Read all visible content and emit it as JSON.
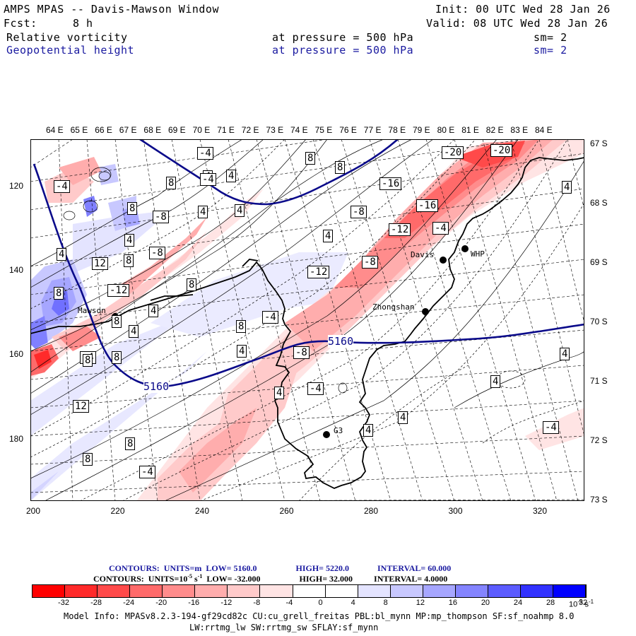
{
  "header": {
    "title": "AMPS MPAS -- Davis-Mawson Window",
    "init": "Init: 00 UTC Wed 28 Jan 26",
    "fcst_label": "Fcst:",
    "fcst_value": "8 h",
    "valid": "Valid: 08 UTC Wed 28 Jan 26",
    "field1": {
      "name": "Relative vorticity",
      "pressure": "at pressure =  500 hPa",
      "sm": "sm= 2"
    },
    "field2": {
      "name": "Geopotential height",
      "pressure": "at pressure =  500 hPa",
      "sm": "sm= 2"
    }
  },
  "axes": {
    "top_lon": [
      "64 E",
      "65 E",
      "66 E",
      "67 E",
      "68 E",
      "69 E",
      "70 E",
      "71 E",
      "72 E",
      "73 E",
      "74 E",
      "75 E",
      "76 E",
      "77 E",
      "78 E",
      "79 E",
      "80 E",
      "81 E",
      "82 E",
      "83 E",
      "84 E"
    ],
    "left_y": [
      "120",
      "140",
      "160",
      "180"
    ],
    "right_lat": [
      "67 S",
      "68 S",
      "69 S",
      "70 S",
      "71 S",
      "72 S",
      "73 S"
    ],
    "bottom_x": [
      "200",
      "220",
      "240",
      "260",
      "280",
      "300",
      "320"
    ]
  },
  "stations": [
    {
      "name": "Davis"
    },
    {
      "name": "WHP"
    },
    {
      "name": "Zhongshan"
    },
    {
      "name": "Mawson"
    },
    {
      "name": "G3"
    }
  ],
  "height_labels": [
    "5160",
    "5160"
  ],
  "vort_labels": [
    "-4",
    "-4",
    "4",
    "4",
    "8",
    "8",
    "4",
    "-4",
    "8",
    "8",
    "4",
    "-8",
    "4",
    "8",
    "-8",
    "12",
    "4",
    "8",
    "-12",
    "8",
    "4",
    "4",
    "8",
    "8",
    "-4",
    "8",
    "4",
    "-8",
    "-16",
    "-16",
    "-20",
    "-20",
    "-12",
    "-4",
    "4",
    "-12",
    "-8",
    "8",
    "12",
    "8",
    "8",
    "-4",
    "-4",
    "-8",
    "-4",
    "4",
    "4",
    "4",
    "-4",
    "4",
    "4",
    "4"
  ],
  "legend": {
    "line1": {
      "contours": "CONTOURS:",
      "units": "UNITS=m",
      "low": "LOW=  5160.0",
      "high": "HIGH=  5220.0",
      "interval": "INTERVAL=   60.000"
    },
    "line2": {
      "contours": "CONTOURS:",
      "units": "UNITS=10",
      "units_exp": "-5",
      "units_suffix": " s",
      "units_suffix_exp": "-1",
      "low": "LOW=  -32.000",
      "high": "HIGH=  32.000",
      "interval": "INTERVAL=   4.0000"
    },
    "colors": [
      "#ff0000",
      "#ff2a2a",
      "#ff4a4a",
      "#ff6a6a",
      "#ff8c8c",
      "#ffadad",
      "#ffcaca",
      "#ffe4e4",
      "#ffffff",
      "#ffffff",
      "#e4e4ff",
      "#c8c8ff",
      "#a6a6ff",
      "#8484ff",
      "#5c5cff",
      "#3232ff",
      "#0000ff"
    ],
    "ticks": [
      "-32",
      "-28",
      "-24",
      "-20",
      "-16",
      "-12",
      "-8",
      "-4",
      "0",
      "4",
      "8",
      "12",
      "16",
      "20",
      "24",
      "28",
      "32"
    ],
    "unit_base": "10",
    "unit_exp": "-5",
    "unit_suffix": "s",
    "unit_suffix_exp": "-1"
  },
  "model_info": {
    "line1": "Model Info: MPASv8.2.3-194-gf29cd82c CU:cu_grell_freitas PBL:bl_mynn MP:mp_thompson SF:sf_noahmp 8.0",
    "line2": "LW:rrtmg_lw SW:rrtmg_sw SFLAY:sf_mynn"
  }
}
